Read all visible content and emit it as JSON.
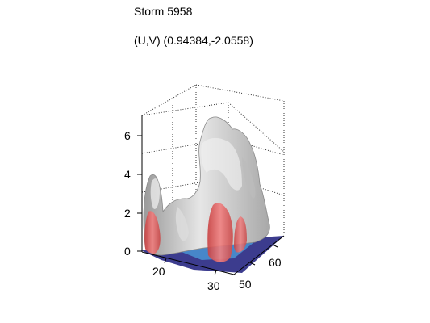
{
  "figure": {
    "title": "Storm 5958",
    "subtitle": "(U,V) (0.94384,-2.0558)"
  },
  "chart_data": {
    "type": "3d-surface",
    "title": "Storm 5958",
    "subtitle": "(U,V) (0.94384,-2.0558)",
    "x_axis": {
      "label": "",
      "ticks": [
        "20",
        "30"
      ]
    },
    "y_axis": {
      "label": "",
      "ticks": [
        "50",
        "60"
      ]
    },
    "z_axis": {
      "label": "",
      "ticks": [
        "0",
        "2",
        "4",
        "6"
      ],
      "range": [
        0,
        7
      ]
    },
    "grid": true,
    "colors": {
      "isosurface": "#c8c8c8",
      "core": "#e85b5b",
      "base_field_low": "#1a1a7a",
      "base_field_mid": "#4a9ad8",
      "base_field_high": "#4fd07a"
    }
  }
}
